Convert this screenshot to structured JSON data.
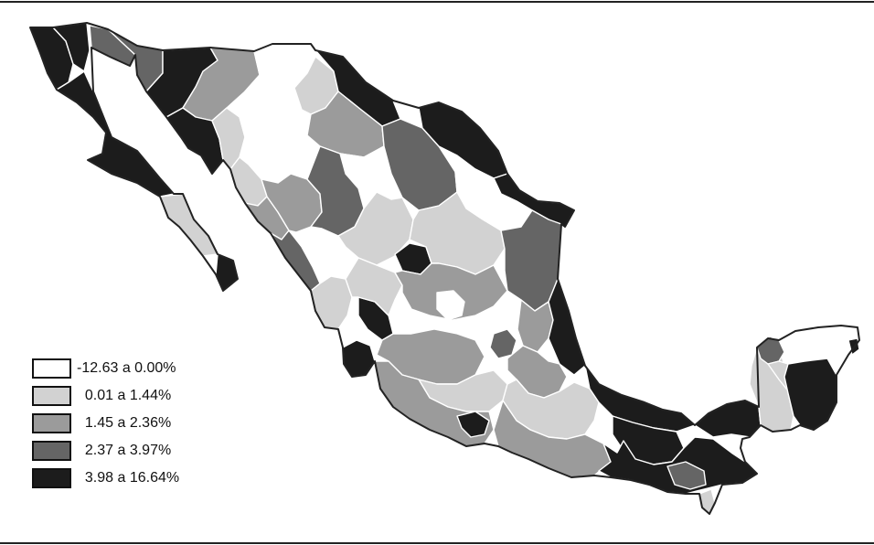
{
  "legend": {
    "items": [
      {
        "label": "-12.63 a 0.00%",
        "color": "#ffffff"
      },
      {
        "label": "  0.01 a 1.44%",
        "color": "#d2d2d2"
      },
      {
        "label": "  1.45 a 2.36%",
        "color": "#9b9b9b"
      },
      {
        "label": "  2.37 a 3.97%",
        "color": "#656565"
      },
      {
        "label": "  3.98 a 16.64%",
        "color": "#1c1c1c"
      }
    ]
  },
  "classes": {
    "white": "#ffffff",
    "light": "#d2d2d2",
    "mid": "#9b9b9b",
    "dark": "#656565",
    "black": "#1c1c1c"
  },
  "regions": [
    {
      "id": "baja-north-west",
      "class": "black"
    },
    {
      "id": "baja-north-east",
      "class": "black"
    },
    {
      "id": "baja-north-coast",
      "class": "dark"
    },
    {
      "id": "baja-south-upper",
      "class": "black"
    },
    {
      "id": "baja-south-middle",
      "class": "light"
    },
    {
      "id": "baja-south-tip",
      "class": "black"
    },
    {
      "id": "sonora-west",
      "class": "dark"
    },
    {
      "id": "sonora-north",
      "class": "black"
    },
    {
      "id": "sonora-central",
      "class": "mid"
    },
    {
      "id": "sonora-coast",
      "class": "black"
    },
    {
      "id": "sonora-south",
      "class": "light"
    },
    {
      "id": "chihuahua-north",
      "class": "white"
    },
    {
      "id": "chihuahua-central",
      "class": "white"
    },
    {
      "id": "chihuahua-east",
      "class": "light"
    },
    {
      "id": "chihuahua-south",
      "class": "white"
    },
    {
      "id": "coahuila-north",
      "class": "black"
    },
    {
      "id": "coahuila-central",
      "class": "mid"
    },
    {
      "id": "coahuila-south",
      "class": "white"
    },
    {
      "id": "nuevo-leon",
      "class": "dark"
    },
    {
      "id": "tamaulipas-north",
      "class": "black"
    },
    {
      "id": "tamaulipas-coast",
      "class": "black"
    },
    {
      "id": "tamaulipas-south",
      "class": "white"
    },
    {
      "id": "sinaloa-north",
      "class": "light"
    },
    {
      "id": "sinaloa-central",
      "class": "mid"
    },
    {
      "id": "sinaloa-south",
      "class": "dark"
    },
    {
      "id": "durango-north",
      "class": "mid"
    },
    {
      "id": "durango-south",
      "class": "dark"
    },
    {
      "id": "zacatecas",
      "class": "light"
    },
    {
      "id": "zacatecas-east",
      "class": "black"
    },
    {
      "id": "san-luis-potosi",
      "class": "light"
    },
    {
      "id": "veracruz-north",
      "class": "dark"
    },
    {
      "id": "veracruz-central",
      "class": "mid"
    },
    {
      "id": "veracruz-coast",
      "class": "black"
    },
    {
      "id": "nayarit",
      "class": "light"
    },
    {
      "id": "jalisco-north",
      "class": "black"
    },
    {
      "id": "jalisco-central",
      "class": "light"
    },
    {
      "id": "jalisco-coast",
      "class": "black"
    },
    {
      "id": "bajio",
      "class": "mid"
    },
    {
      "id": "queretaro-hidalgo",
      "class": "white"
    },
    {
      "id": "mexico-city",
      "class": "dark"
    },
    {
      "id": "michoacan",
      "class": "mid"
    },
    {
      "id": "guerrero-north",
      "class": "light"
    },
    {
      "id": "guerrero-coast",
      "class": "mid"
    },
    {
      "id": "guerrero-black",
      "class": "black"
    },
    {
      "id": "puebla",
      "class": "mid"
    },
    {
      "id": "oaxaca-north",
      "class": "light"
    },
    {
      "id": "oaxaca-south",
      "class": "mid"
    },
    {
      "id": "oaxaca-isthmus",
      "class": "white"
    },
    {
      "id": "tabasco",
      "class": "black"
    },
    {
      "id": "chiapas-north",
      "class": "black"
    },
    {
      "id": "chiapas-central",
      "class": "black"
    },
    {
      "id": "chiapas-south",
      "class": "dark"
    },
    {
      "id": "chiapas-tip",
      "class": "light"
    },
    {
      "id": "campeche-west",
      "class": "black"
    },
    {
      "id": "campeche-east",
      "class": "light"
    },
    {
      "id": "yucatan-north",
      "class": "white"
    },
    {
      "id": "yucatan-west",
      "class": "dark"
    },
    {
      "id": "yucatan-central",
      "class": "light"
    },
    {
      "id": "quintana-roo",
      "class": "black"
    },
    {
      "id": "cancun",
      "class": "black"
    }
  ]
}
